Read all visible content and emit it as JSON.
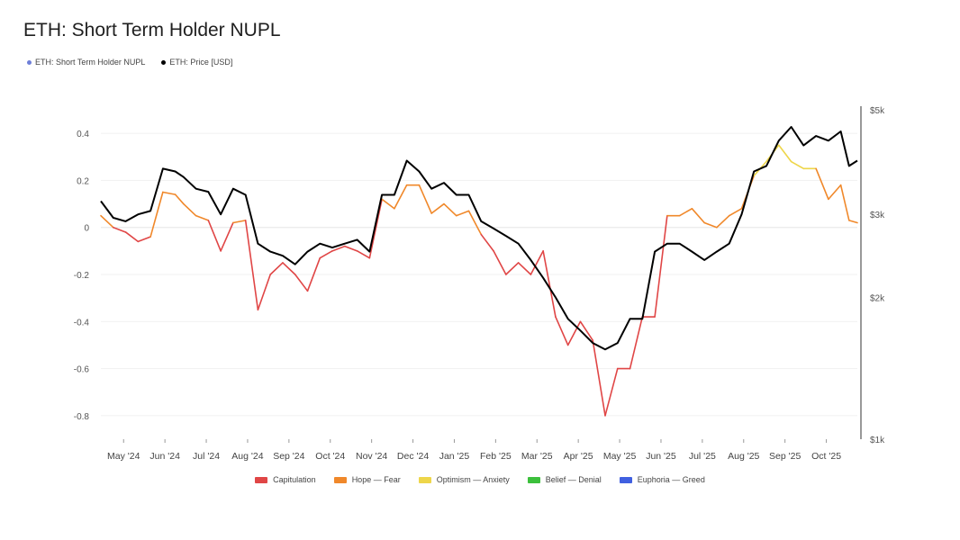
{
  "title": "ETH: Short Term Holder NUPL",
  "top_legend": [
    {
      "label": "ETH: Short Term Holder NUPL",
      "color": "#6e7fd8"
    },
    {
      "label": "ETH: Price [USD]",
      "color": "#000000"
    }
  ],
  "bottom_legend": [
    {
      "label": "Capitulation",
      "color": "#e04646"
    },
    {
      "label": "Hope — Fear",
      "color": "#f0882a"
    },
    {
      "label": "Optimism — Anxiety",
      "color": "#eed64a"
    },
    {
      "label": "Belief — Denial",
      "color": "#3cc03c"
    },
    {
      "label": "Euphoria — Greed",
      "color": "#4060e0"
    }
  ],
  "chart_data": {
    "type": "line",
    "title": "ETH: Short Term Holder NUPL",
    "x_range": [
      "2024-04-15",
      "2025-10-24"
    ],
    "x_ticks": [
      "May '24",
      "Jun '24",
      "Jul '24",
      "Aug '24",
      "Sep '24",
      "Oct '24",
      "Nov '24",
      "Dec '24",
      "Jan '25",
      "Feb '25",
      "Mar '25",
      "Apr '25",
      "May '25",
      "Jun '25",
      "Jul '25",
      "Aug '25",
      "Sep '25",
      "Oct '25"
    ],
    "y_left": {
      "ticks": [
        "0.4",
        "0.2",
        "0",
        "-0.2",
        "-0.4",
        "-0.6",
        "-0.8"
      ],
      "tick_values": [
        0.4,
        0.2,
        0,
        -0.2,
        -0.4,
        -0.6,
        -0.8
      ],
      "ylim": [
        -0.9,
        0.5
      ]
    },
    "y_right": {
      "ticks": [
        "$5k",
        "$3k",
        "$2k",
        "$1k"
      ],
      "tick_values": [
        5000,
        3000,
        2000,
        1000
      ],
      "scale": "log",
      "ylim": [
        1000,
        5000
      ]
    },
    "zones": [
      {
        "name": "Capitulation",
        "below": 0,
        "color": "#e04646"
      },
      {
        "name": "Hope — Fear",
        "from": 0,
        "to": 0.25,
        "color": "#f0882a"
      },
      {
        "name": "Optimism — Anxiety",
        "from": 0.25,
        "to": 0.5,
        "color": "#eed64a"
      },
      {
        "name": "Belief — Denial",
        "from": 0.5,
        "to": 0.75,
        "color": "#3cc03c"
      },
      {
        "name": "Euphoria — Greed",
        "above": 0.75,
        "color": "#4060e0"
      }
    ],
    "series": [
      {
        "name": "ETH: Short Term Holder NUPL",
        "x_months": [
          0,
          0.3,
          0.6,
          0.9,
          1.2,
          1.5,
          1.8,
          2.0,
          2.3,
          2.6,
          2.9,
          3.2,
          3.5,
          3.8,
          4.1,
          4.4,
          4.7,
          5.0,
          5.3,
          5.6,
          5.9,
          6.2,
          6.5,
          6.8,
          7.1,
          7.4,
          7.7,
          8.0,
          8.3,
          8.6,
          8.9,
          9.2,
          9.5,
          9.8,
          10.1,
          10.4,
          10.7,
          11.0,
          11.3,
          11.6,
          11.9,
          12.2,
          12.5,
          12.8,
          13.1,
          13.4,
          13.7,
          14.0,
          14.3,
          14.6,
          14.9,
          15.2,
          15.5,
          15.8,
          16.1,
          16.4,
          16.7,
          17.0,
          17.3,
          17.6,
          17.9,
          18.1,
          18.3
        ],
        "values": [
          0.05,
          0.0,
          -0.02,
          -0.06,
          -0.04,
          0.15,
          0.14,
          0.1,
          0.05,
          0.03,
          -0.1,
          0.02,
          0.03,
          -0.35,
          -0.2,
          -0.15,
          -0.2,
          -0.27,
          -0.13,
          -0.1,
          -0.08,
          -0.1,
          -0.13,
          0.12,
          0.08,
          0.18,
          0.18,
          0.06,
          0.1,
          0.05,
          0.07,
          -0.03,
          -0.1,
          -0.2,
          -0.15,
          -0.2,
          -0.1,
          -0.38,
          -0.5,
          -0.4,
          -0.48,
          -0.8,
          -0.6,
          -0.6,
          -0.38,
          -0.38,
          0.05,
          0.05,
          0.08,
          0.02,
          0.0,
          0.05,
          0.08,
          0.22,
          0.28,
          0.35,
          0.28,
          0.25,
          0.25,
          0.12,
          0.18,
          0.03,
          0.02
        ]
      },
      {
        "name": "ETH: Price [USD]",
        "x_months": [
          0,
          0.3,
          0.6,
          0.9,
          1.2,
          1.5,
          1.8,
          2.0,
          2.3,
          2.6,
          2.9,
          3.2,
          3.5,
          3.8,
          4.1,
          4.4,
          4.7,
          5.0,
          5.3,
          5.6,
          5.9,
          6.2,
          6.5,
          6.8,
          7.1,
          7.4,
          7.7,
          8.0,
          8.3,
          8.6,
          8.9,
          9.2,
          9.5,
          9.8,
          10.1,
          10.4,
          10.7,
          11.0,
          11.3,
          11.6,
          11.9,
          12.2,
          12.5,
          12.8,
          13.1,
          13.4,
          13.7,
          14.0,
          14.3,
          14.6,
          14.9,
          15.2,
          15.5,
          15.8,
          16.1,
          16.4,
          16.7,
          17.0,
          17.3,
          17.6,
          17.9,
          18.1,
          18.3
        ],
        "values": [
          3200,
          2950,
          2900,
          3000,
          3050,
          3750,
          3700,
          3600,
          3400,
          3350,
          3000,
          3400,
          3300,
          2600,
          2500,
          2450,
          2350,
          2500,
          2600,
          2550,
          2600,
          2650,
          2500,
          3300,
          3300,
          3900,
          3700,
          3400,
          3500,
          3300,
          3300,
          2900,
          2800,
          2700,
          2600,
          2400,
          2200,
          2000,
          1800,
          1700,
          1600,
          1550,
          1600,
          1800,
          1800,
          2500,
          2600,
          2600,
          2500,
          2400,
          2500,
          2600,
          3000,
          3700,
          3800,
          4300,
          4600,
          4200,
          4400,
          4300,
          4500,
          3800,
          3900
        ]
      }
    ]
  }
}
